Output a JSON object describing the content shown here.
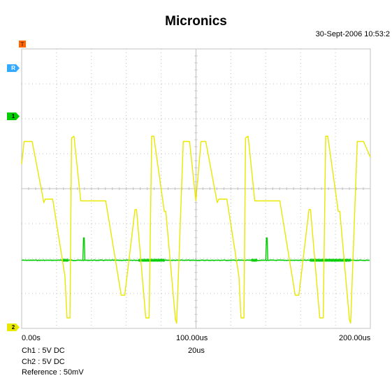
{
  "header": {
    "title": "Micronics",
    "timestamp": "30-Sept-2006 10:53:2"
  },
  "markers": {
    "trigger": "T",
    "reference": "R",
    "ch1": "1",
    "ch2": "2"
  },
  "settings": {
    "ch1": "Ch1 : 5V  DC",
    "ch2": "Ch2 : 5V  DC",
    "reference": "Reference : 50mV",
    "timebase": "20us"
  },
  "colors": {
    "ch1": "#00cc00",
    "ch2": "#e8e800",
    "grid": "#c0c0c0",
    "reference": "#33aaff",
    "trigger": "#ff6600"
  },
  "chart_data": {
    "type": "line",
    "x_unit": "us",
    "xlim": [
      0,
      200
    ],
    "x_tick_labels": [
      "0.00s",
      "100.00us",
      "200.00us"
    ],
    "x_tick_values": [
      0,
      100,
      200
    ],
    "grid": true,
    "divisions": {
      "x": 10,
      "y": 8
    },
    "series": [
      {
        "channel": "ch1",
        "baseline_div": 1.95,
        "spikes_us": [
          35.7,
          140.6
        ],
        "noise_bursts_us": [
          [
            23.4,
            26.8
          ],
          [
            67,
            82
          ],
          [
            131.7,
            135
          ],
          [
            165.3,
            188.7
          ]
        ]
      },
      {
        "channel": "ch2",
        "points": [
          [
            0,
            4.7
          ],
          [
            1.4,
            5.35
          ],
          [
            6,
            5.35
          ],
          [
            12,
            3.8
          ],
          [
            12.7,
            3.6
          ],
          [
            13.5,
            3.7
          ],
          [
            17.8,
            3.7
          ],
          [
            24.8,
            1.5
          ],
          [
            26,
            0.3
          ],
          [
            27.7,
            0.3
          ],
          [
            28.6,
            5.45
          ],
          [
            30,
            5.5
          ],
          [
            33.9,
            3.65
          ],
          [
            48.2,
            3.65
          ],
          [
            57.1,
            0.95
          ],
          [
            59.1,
            0.95
          ],
          [
            65,
            3.4
          ],
          [
            65.9,
            3.4
          ],
          [
            71.2,
            0.3
          ],
          [
            73.1,
            0.3
          ],
          [
            74.6,
            5.5
          ],
          [
            75.8,
            5.5
          ],
          [
            81.8,
            3.35
          ],
          [
            82.7,
            3.35
          ],
          [
            88.2,
            0.25
          ],
          [
            88.9,
            0.15
          ],
          [
            92.7,
            5.35
          ],
          [
            96.3,
            5.35
          ],
          [
            99.9,
            3.65
          ],
          [
            102.9,
            5.35
          ],
          [
            105.6,
            5.35
          ],
          [
            111.6,
            3.75
          ],
          [
            112.2,
            3.6
          ],
          [
            113.1,
            3.7
          ],
          [
            117.7,
            3.7
          ],
          [
            124.6,
            1.5
          ],
          [
            125.8,
            0.3
          ],
          [
            127.5,
            0.3
          ],
          [
            128.4,
            5.45
          ],
          [
            129.9,
            5.5
          ],
          [
            133.7,
            3.65
          ],
          [
            148.1,
            3.65
          ],
          [
            156.9,
            0.95
          ],
          [
            159,
            0.95
          ],
          [
            164.8,
            3.4
          ],
          [
            165.7,
            3.4
          ],
          [
            171,
            0.3
          ],
          [
            173,
            0.3
          ],
          [
            174.4,
            5.5
          ],
          [
            175.6,
            5.5
          ],
          [
            181.6,
            3.35
          ],
          [
            182.5,
            3.35
          ],
          [
            188,
            0.25
          ],
          [
            188.7,
            0.15
          ],
          [
            192.5,
            5.35
          ],
          [
            196.1,
            5.35
          ],
          [
            200,
            4.9
          ]
        ]
      }
    ]
  }
}
